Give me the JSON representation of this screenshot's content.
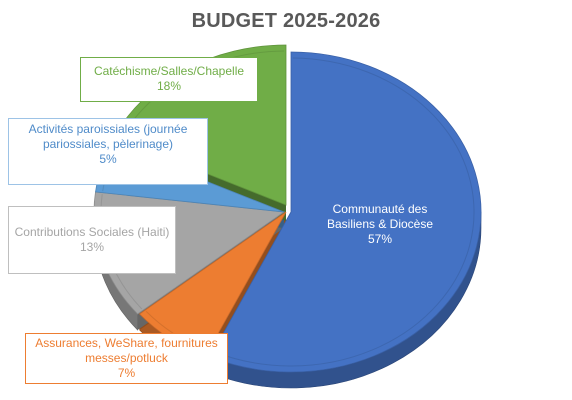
{
  "chart_data": {
    "type": "pie",
    "title": "BUDGET 2025-2026",
    "slices": [
      {
        "label": "Communauté des Basiliens & Diocèse",
        "value": 57,
        "value_label": "57%",
        "color": "#4472c4"
      },
      {
        "label": "Assurances, WeShare, fournitures messes/potluck",
        "value": 7,
        "value_label": "7%",
        "color": "#ed7d31"
      },
      {
        "label": "Contributions Sociales (Haiti)",
        "value": 13,
        "value_label": "13%",
        "color": "#a5a5a5"
      },
      {
        "label": "Activités paroissiales (journée pariossiales, pèlerinage)",
        "value": 5,
        "value_label": "5%",
        "color": "#5b9bd5"
      },
      {
        "label": "Catéchisme/Salles/Chapelle",
        "value": 18,
        "value_label": "18%",
        "color": "#70ad47"
      }
    ],
    "style": "3d-exploded",
    "legend": "none"
  }
}
